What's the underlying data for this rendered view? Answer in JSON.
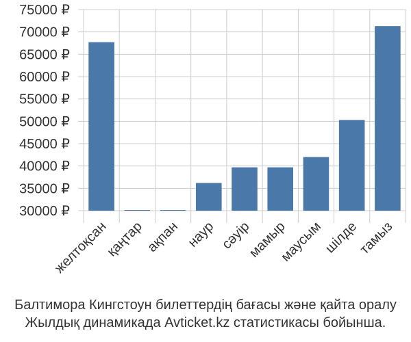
{
  "chart_data": {
    "type": "bar",
    "categories": [
      "желтоқсан",
      "қаңтар",
      "ақпан",
      "наур",
      "сәуір",
      "мамыр",
      "маусым",
      "шілде",
      "тамыз"
    ],
    "values": [
      67700,
      30000,
      30000,
      36200,
      39700,
      39700,
      42000,
      50300,
      71300
    ],
    "ylim": [
      30000,
      75000
    ],
    "yticks": [
      30000,
      35000,
      40000,
      45000,
      50000,
      55000,
      60000,
      65000,
      70000,
      75000
    ],
    "ytick_labels": [
      "30000 ₽",
      "35000 ₽",
      "40000 ₽",
      "45000 ₽",
      "50000 ₽",
      "55000 ₽",
      "60000 ₽",
      "65000 ₽",
      "70000 ₽",
      "75000 ₽"
    ],
    "grid": true,
    "bar_color": "#4a78a8",
    "grid_color": "#cccccc"
  },
  "caption": {
    "line1": "Балтимора Кингстоун билеттердің бағасы және қайта оралу",
    "line2": "Жылдық динамикада Avticket.kz статистикасы бойынша."
  }
}
